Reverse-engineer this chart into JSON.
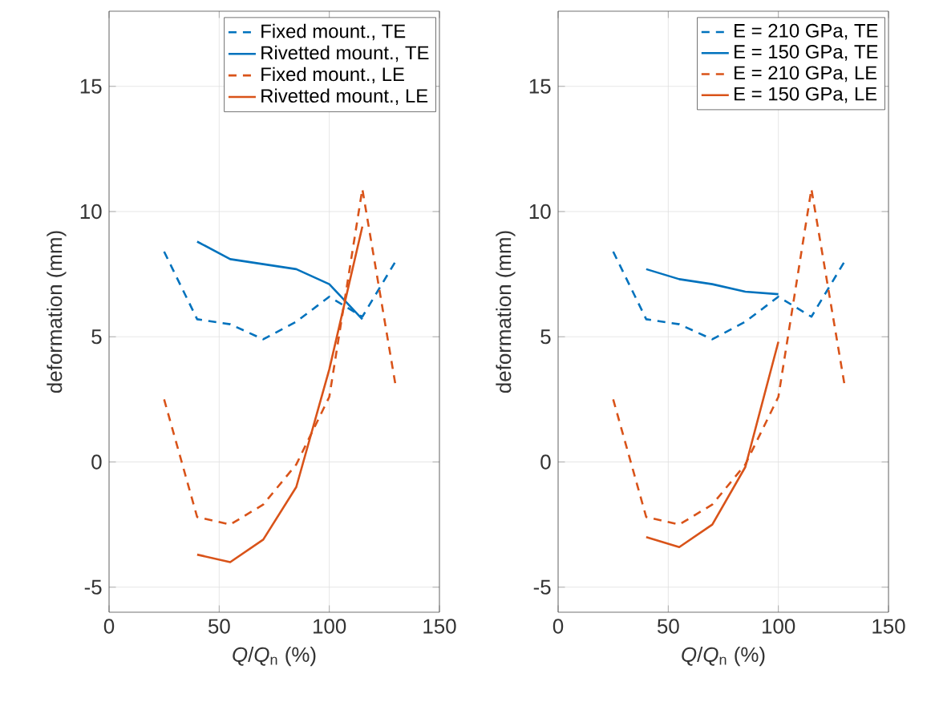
{
  "chart_data": [
    {
      "type": "line",
      "xlabel": "*Q*/*Q*$_{n}$ (%)",
      "ylabel": "deformation (mm)",
      "x": [
        25,
        40,
        55,
        70,
        85,
        100,
        115,
        130
      ],
      "xlim": [
        0,
        150
      ],
      "xticks": [
        0,
        50,
        100,
        150
      ],
      "ylim": [
        -6,
        18
      ],
      "yticks": [
        -5,
        0,
        5,
        10,
        15
      ],
      "grid": true,
      "legend": "top right",
      "series": [
        {
          "name": "Fixed mount., TE",
          "color": "#0072bd",
          "line_style": "dashed",
          "values": [
            8.4,
            5.7,
            5.5,
            4.9,
            5.6,
            6.6,
            5.8,
            8.0
          ]
        },
        {
          "name": "Rivetted mount., TE",
          "color": "#0072bd",
          "line_style": "solid",
          "x": [
            40,
            55,
            70,
            85,
            100,
            115
          ],
          "values": [
            8.8,
            8.1,
            7.9,
            7.7,
            7.1,
            5.7
          ]
        },
        {
          "name": "Fixed mount., LE",
          "color": "#d95319",
          "line_style": "dashed",
          "values": [
            2.5,
            -2.2,
            -2.5,
            -1.7,
            -0.1,
            2.6,
            10.9,
            3.1
          ]
        },
        {
          "name": "Rivetted mount., LE",
          "color": "#d95319",
          "line_style": "solid",
          "x": [
            40,
            55,
            70,
            85,
            100,
            115
          ],
          "values": [
            -3.7,
            -4.0,
            -3.1,
            -1.0,
            3.7,
            9.4
          ]
        }
      ]
    },
    {
      "type": "line",
      "xlabel": "*Q*/*Q*$_{n}$ (%)",
      "ylabel": "deformation (mm)",
      "x": [
        25,
        40,
        55,
        70,
        85,
        100,
        115,
        130
      ],
      "xlim": [
        0,
        150
      ],
      "xticks": [
        0,
        50,
        100,
        150
      ],
      "ylim": [
        -6,
        18
      ],
      "yticks": [
        -5,
        0,
        5,
        10,
        15
      ],
      "grid": true,
      "legend": "top right",
      "series": [
        {
          "name": "E = 210 GPa, TE",
          "color": "#0072bd",
          "line_style": "dashed",
          "values": [
            8.4,
            5.7,
            5.5,
            4.9,
            5.6,
            6.6,
            5.8,
            8.0
          ]
        },
        {
          "name": "E = 150 GPa, TE",
          "color": "#0072bd",
          "line_style": "solid",
          "x": [
            40,
            55,
            70,
            85,
            100
          ],
          "values": [
            7.7,
            7.3,
            7.1,
            6.8,
            6.7
          ]
        },
        {
          "name": "E = 210 GPa, LE",
          "color": "#d95319",
          "line_style": "dashed",
          "values": [
            2.5,
            -2.2,
            -2.5,
            -1.7,
            -0.1,
            2.6,
            10.9,
            3.1
          ]
        },
        {
          "name": "E = 150 GPa, LE",
          "color": "#d95319",
          "line_style": "solid",
          "x": [
            40,
            55,
            70,
            85,
            100
          ],
          "values": [
            -3.0,
            -3.4,
            -2.5,
            -0.2,
            4.8
          ]
        }
      ]
    }
  ]
}
